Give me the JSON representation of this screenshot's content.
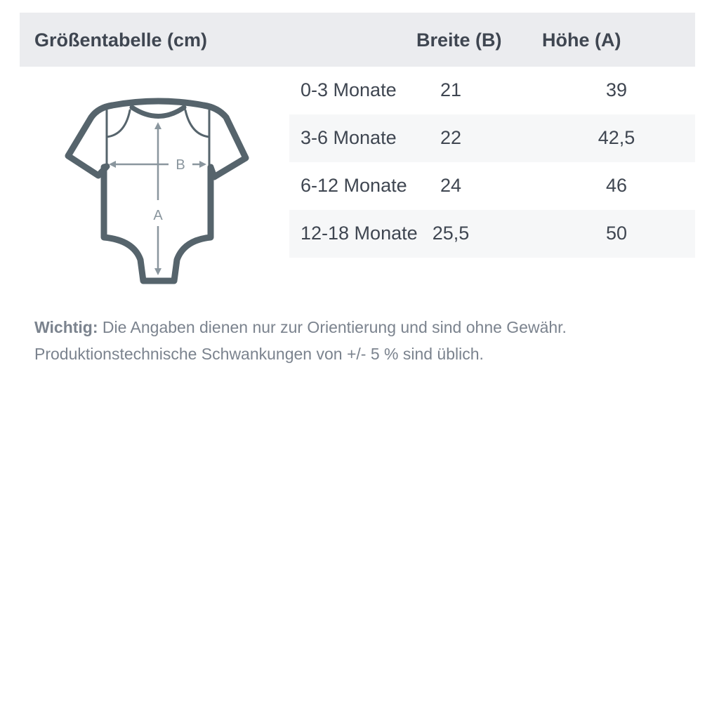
{
  "header": {
    "title": "Größentabelle (cm)",
    "col_width": "Breite (B)",
    "col_height": "Höhe (A)"
  },
  "rows": [
    {
      "size": "0-3 Monate",
      "width": "21",
      "height": "39"
    },
    {
      "size": "3-6 Monate",
      "width": "22",
      "height": "42,5"
    },
    {
      "size": "6-12 Monate",
      "width": "24",
      "height": "46"
    },
    {
      "size": "12-18 Monate",
      "width": "25,5",
      "height": "50"
    }
  ],
  "diagram": {
    "label_b": "B",
    "label_a": "A",
    "outline_color": "#56646c",
    "arrow_color": "#8a969e"
  },
  "note": {
    "bold": "Wichtig:",
    "line1": " Die Angaben dienen nur zur Orientierung und sind ohne Gewähr.",
    "line2": "Produktionstechnische Schwankungen von +/- 5 % sind üblich."
  },
  "colors": {
    "header_bg": "#ebecef",
    "stripe_bg": "#f6f7f8",
    "text": "#3f4651",
    "note_text": "#7b838e"
  }
}
